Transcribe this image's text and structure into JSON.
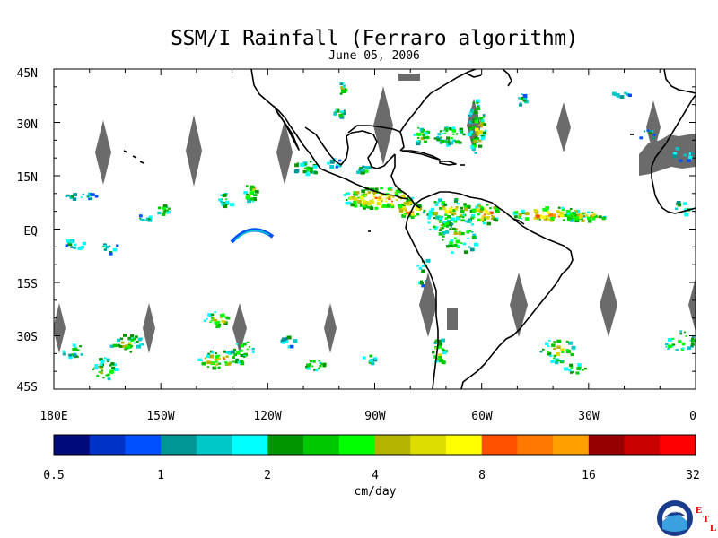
{
  "title": "SSM/I Rainfall (Ferraro algorithm)",
  "date": "June 05, 2006",
  "map": {
    "lat_labels": [
      "45N",
      "30N",
      "15N",
      "EQ",
      "15S",
      "30S",
      "45S"
    ],
    "lon_labels": [
      "180E",
      "150W",
      "120W",
      "90W",
      "60W",
      "30W",
      "0"
    ],
    "land_outline_color": "#000000",
    "no_data_color": "#6b6b6b",
    "ocean_color": "#ffffff"
  },
  "colorbar": {
    "unit_label": "cm/day",
    "tick_labels": [
      "0.5",
      "1",
      "2",
      "4",
      "8",
      "16",
      "32"
    ],
    "colors": [
      "#000a78",
      "#0032c8",
      "#0050ff",
      "#009696",
      "#00c8c8",
      "#00ffff",
      "#009600",
      "#00c800",
      "#00ff00",
      "#b4b400",
      "#dcdc00",
      "#ffff00",
      "#ff5000",
      "#ff7800",
      "#ffa000",
      "#960000",
      "#c80000",
      "#ff0000"
    ]
  },
  "logo": {
    "text": "NOAA",
    "lab_letters": [
      "E",
      "T",
      "L"
    ],
    "lab_color": "#e00000"
  }
}
